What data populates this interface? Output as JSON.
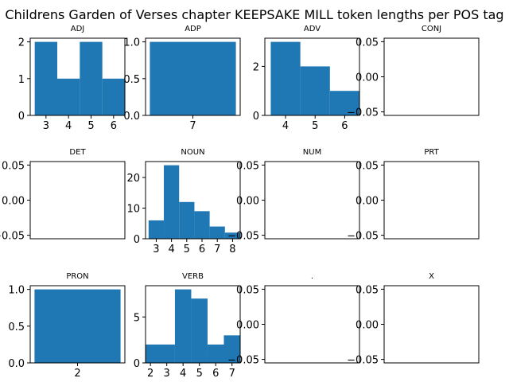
{
  "figure": {
    "title": "Childrens Garden of Verses chapter KEEPSAKE MILL token lengths per POS tag"
  },
  "colors": {
    "bar": "#1f77b4",
    "axis": "#000000",
    "background": "#ffffff"
  },
  "chart_data": [
    {
      "type": "bar",
      "title": "ADJ",
      "bins": [
        [
          2.5,
          3.5
        ],
        [
          3.5,
          4.5
        ],
        [
          4.5,
          5.5
        ],
        [
          5.5,
          6.5
        ]
      ],
      "values": [
        2,
        1,
        2,
        1
      ],
      "xlim": [
        2.3,
        6.5
      ],
      "ylim": [
        0,
        2.1
      ],
      "xticks": [
        3,
        4,
        5,
        6
      ],
      "yticks": [
        0,
        1,
        2
      ]
    },
    {
      "type": "bar",
      "title": "ADP",
      "bins": [
        [
          6.5,
          7.5
        ]
      ],
      "values": [
        1
      ],
      "xlim": [
        6.45,
        7.55
      ],
      "ylim": [
        0,
        1.05
      ],
      "xticks": [
        7
      ],
      "yticks": [
        0.0,
        0.5,
        1.0
      ],
      "ytick_labels": [
        "0.0",
        "0.5",
        "1.0"
      ]
    },
    {
      "type": "bar",
      "title": "ADV",
      "bins": [
        [
          3.5,
          4.5
        ],
        [
          4.5,
          5.5
        ],
        [
          5.5,
          6.5
        ]
      ],
      "values": [
        3,
        2,
        1
      ],
      "xlim": [
        3.3,
        6.5
      ],
      "ylim": [
        0,
        3.15
      ],
      "xticks": [
        4,
        5,
        6
      ],
      "yticks": [
        0,
        2
      ]
    },
    {
      "type": "bar",
      "title": "CONJ",
      "bins": [],
      "values": [],
      "xlim": [
        0,
        1
      ],
      "ylim": [
        -0.055,
        0.055
      ],
      "xticks": [],
      "yticks": [
        -0.05,
        0.0,
        0.05
      ],
      "ytick_labels": [
        "−0.05",
        "0.00",
        "0.05"
      ]
    },
    {
      "type": "bar",
      "title": "DET",
      "bins": [],
      "values": [],
      "xlim": [
        0,
        1
      ],
      "ylim": [
        -0.055,
        0.055
      ],
      "xticks": [],
      "yticks": [
        -0.05,
        0.0,
        0.05
      ],
      "ytick_labels": [
        "−0.05",
        "0.00",
        "0.05"
      ]
    },
    {
      "type": "bar",
      "title": "NOUN",
      "bins": [
        [
          2.5,
          3.5
        ],
        [
          3.5,
          4.5
        ],
        [
          4.5,
          5.5
        ],
        [
          5.5,
          6.5
        ],
        [
          6.5,
          7.5
        ],
        [
          7.5,
          8.5
        ]
      ],
      "values": [
        6,
        24,
        12,
        9,
        4,
        2
      ],
      "xlim": [
        2.3,
        8.5
      ],
      "ylim": [
        0,
        25.2
      ],
      "xticks": [
        3,
        4,
        5,
        6,
        7,
        8
      ],
      "yticks": [
        0,
        10,
        20
      ]
    },
    {
      "type": "bar",
      "title": "NUM",
      "bins": [],
      "values": [],
      "xlim": [
        0,
        1
      ],
      "ylim": [
        -0.055,
        0.055
      ],
      "xticks": [],
      "yticks": [
        -0.05,
        0.0,
        0.05
      ],
      "ytick_labels": [
        "−0.05",
        "0.00",
        "0.05"
      ]
    },
    {
      "type": "bar",
      "title": "PRT",
      "bins": [],
      "values": [],
      "xlim": [
        0,
        1
      ],
      "ylim": [
        -0.055,
        0.055
      ],
      "xticks": [],
      "yticks": [
        -0.05,
        0.0,
        0.05
      ],
      "ytick_labels": [
        "−0.05",
        "0.00",
        "0.05"
      ]
    },
    {
      "type": "bar",
      "title": "PRON",
      "bins": [
        [
          1.5,
          2.5
        ]
      ],
      "values": [
        1
      ],
      "xlim": [
        1.45,
        2.55
      ],
      "ylim": [
        0,
        1.05
      ],
      "xticks": [
        2
      ],
      "yticks": [
        0.0,
        0.5,
        1.0
      ],
      "ytick_labels": [
        "0.0",
        "0.5",
        "1.0"
      ]
    },
    {
      "type": "bar",
      "title": "VERB",
      "bins": [
        [
          1.7,
          3.5
        ],
        [
          3.5,
          4.5
        ],
        [
          4.5,
          5.5
        ],
        [
          5.5,
          6.5
        ],
        [
          6.5,
          7.5
        ]
      ],
      "values": [
        2,
        8,
        7,
        2,
        3
      ],
      "xlim": [
        1.7,
        7.5
      ],
      "ylim": [
        0,
        8.4
      ],
      "xticks": [
        2,
        3,
        4,
        5,
        6,
        7
      ],
      "yticks": [
        0,
        5
      ]
    },
    {
      "type": "bar",
      "title": ".",
      "bins": [],
      "values": [],
      "xlim": [
        0,
        1
      ],
      "ylim": [
        -0.055,
        0.055
      ],
      "xticks": [],
      "yticks": [
        -0.05,
        0.0,
        0.05
      ],
      "ytick_labels": [
        "−0.05",
        "0.00",
        "0.05"
      ]
    },
    {
      "type": "bar",
      "title": "X",
      "bins": [],
      "values": [],
      "xlim": [
        0,
        1
      ],
      "ylim": [
        -0.055,
        0.055
      ],
      "xticks": [],
      "yticks": [
        -0.05,
        0.0,
        0.05
      ],
      "ytick_labels": [
        "−0.05",
        "0.00",
        "0.05"
      ]
    }
  ]
}
